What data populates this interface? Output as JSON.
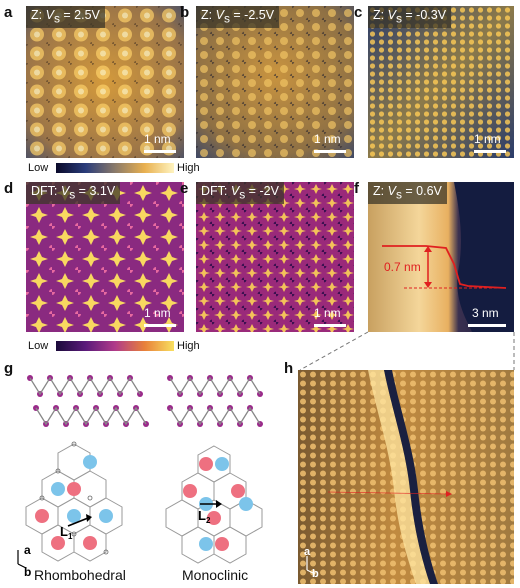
{
  "panels": {
    "a": {
      "letter": "a",
      "tag_prefix": "Z: ",
      "tag_var": "V",
      "tag_sub": "s",
      "tag_value": " = 2.5V",
      "scale": "1 nm"
    },
    "b": {
      "letter": "b",
      "tag_prefix": "Z: ",
      "tag_var": "V",
      "tag_sub": "s",
      "tag_value": " = -2.5V",
      "scale": "1 nm"
    },
    "c": {
      "letter": "c",
      "tag_prefix": "Z: ",
      "tag_var": "V",
      "tag_sub": "s",
      "tag_value": " = -0.3V",
      "scale": "1 nm"
    },
    "d": {
      "letter": "d",
      "tag_prefix": "DFT: ",
      "tag_var": "V",
      "tag_sub": "s",
      "tag_value": " = 3.1V",
      "scale": "1 nm"
    },
    "e": {
      "letter": "e",
      "tag_prefix": "DFT: ",
      "tag_var": "V",
      "tag_sub": "s",
      "tag_value": " = -2V",
      "scale": "1 nm"
    },
    "f": {
      "letter": "f",
      "tag_prefix": "Z: ",
      "tag_var": "V",
      "tag_sub": "s",
      "tag_value": " = 0.6V",
      "scale": "3 nm",
      "step_height": "0.7 nm"
    },
    "g": {
      "letter": "g",
      "left_caption": "Rhombohedral",
      "right_caption": "Monoclinic",
      "left_vector": "L",
      "left_vector_sub": "1",
      "right_vector": "L",
      "right_vector_sub": "2",
      "axis_a": "a",
      "axis_b": "b"
    },
    "h": {
      "letter": "h",
      "axis_a": "a",
      "axis_b": "b"
    }
  },
  "colorbars": {
    "stm": {
      "low": "Low",
      "high": "High"
    },
    "dft": {
      "low": "Low",
      "high": "High"
    }
  },
  "colors": {
    "stm_dark": "#1a2a55",
    "stm_bright": "#f6c760",
    "dft_dark": "#4a1a6e",
    "dft_bright": "#f8d860",
    "red_atom": "#e8506a",
    "blue_atom": "#5bb8e8",
    "step_line": "#e02020"
  }
}
